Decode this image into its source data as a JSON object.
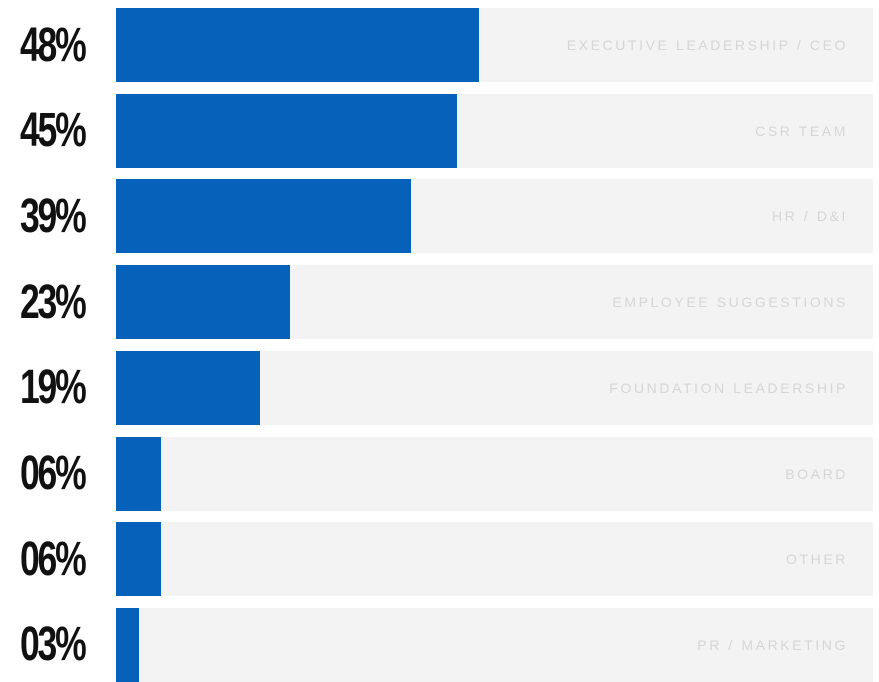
{
  "colors": {
    "bar": "#0561b9",
    "track": "#f3f3f3",
    "category_label": "#d6d6d6",
    "value_label": "#111111",
    "background": "#ffffff"
  },
  "chart_data": {
    "type": "bar",
    "orientation": "horizontal",
    "title": "",
    "xlabel": "",
    "ylabel": "",
    "xlim": [
      0,
      100
    ],
    "grid": false,
    "categories": [
      "EXECUTIVE LEADERSHIP / CEO",
      "CSR TEAM",
      "HR / D&I",
      "EMPLOYEE SUGGESTIONS",
      "FOUNDATION LEADERSHIP",
      "BOARD",
      "OTHER",
      "PR / MARKETING"
    ],
    "values": [
      48,
      45,
      39,
      23,
      19,
      6,
      6,
      3
    ],
    "value_labels": [
      "48%",
      "45%",
      "39%",
      "23%",
      "19%",
      "06%",
      "06%",
      "03%"
    ]
  }
}
